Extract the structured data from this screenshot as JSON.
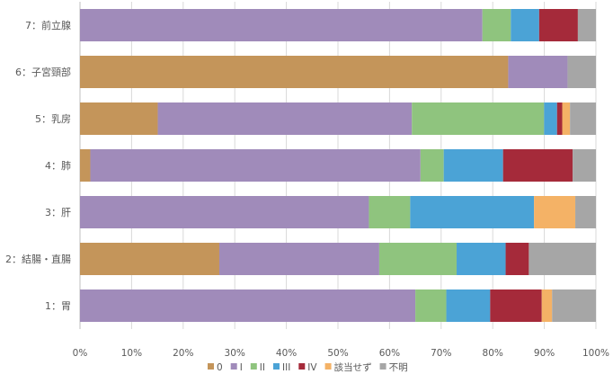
{
  "chart_data": {
    "type": "bar",
    "orientation": "horizontal",
    "stacked": "percent",
    "categories": [
      "7：前立腺",
      "6：子宮頸部",
      "5：乳房",
      "4：肺",
      "3：肝",
      "2：結腸・直腸",
      "1：胃"
    ],
    "series": [
      {
        "name": "0",
        "color": "#c4955a",
        "values": [
          0,
          83,
          15,
          2,
          0,
          27,
          0
        ]
      },
      {
        "name": "I",
        "color": "#a08bba",
        "values": [
          78,
          11.5,
          49,
          64,
          56,
          31,
          65
        ]
      },
      {
        "name": "II",
        "color": "#8fc47e",
        "values": [
          5.5,
          0,
          25.5,
          4.5,
          8,
          15,
          6
        ]
      },
      {
        "name": "III",
        "color": "#4ba3d6",
        "values": [
          5.5,
          0,
          2.5,
          11.5,
          24,
          9.5,
          8.5
        ]
      },
      {
        "name": "IV",
        "color": "#a52a3a",
        "values": [
          7.5,
          0,
          1,
          13.5,
          0,
          4.5,
          10
        ]
      },
      {
        "name": "該当せず",
        "color": "#f4b266",
        "values": [
          0,
          0,
          1.5,
          0,
          8,
          0,
          2
        ]
      },
      {
        "name": "不明",
        "color": "#a6a6a6",
        "values": [
          3.5,
          5.5,
          5,
          4.5,
          4,
          13,
          8.5
        ]
      }
    ],
    "xlim": [
      0,
      100
    ],
    "xticks": [
      "0%",
      "10%",
      "20%",
      "30%",
      "40%",
      "50%",
      "60%",
      "70%",
      "80%",
      "90%",
      "100%"
    ],
    "grid": true,
    "legend_position": "bottom"
  }
}
